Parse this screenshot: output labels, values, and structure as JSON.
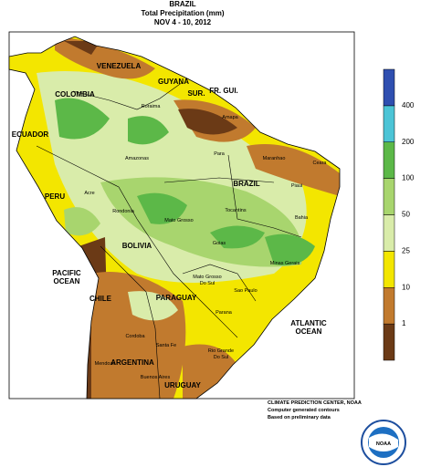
{
  "header": {
    "title": "BRAZIL",
    "subtitle": "Total Precipitation (mm)",
    "dates": "NOV 4 - 10, 2012"
  },
  "legend": {
    "ticks": [
      1,
      10,
      25,
      50,
      100,
      200,
      400
    ],
    "colors": [
      "#6b3a16",
      "#c17a2e",
      "#f3e600",
      "#d9ecaa",
      "#a8d56e",
      "#5cb848",
      "#4cc4d6",
      "#2f4fb0"
    ]
  },
  "countries": [
    "VENEZUELA",
    "GUYANA",
    "SUR.",
    "FR. GUI.",
    "COLOMBIA",
    "ECUADOR",
    "PERU",
    "BRAZIL",
    "BOLIVIA",
    "PARAGUAY",
    "CHILE",
    "ARGENTINA",
    "URUGUAY"
  ],
  "oceans": [
    "PACIFIC",
    "OCEAN",
    "ATLANTIC",
    "OCEAN"
  ],
  "states": [
    "Roraima",
    "Amapa",
    "Amazonas",
    "Para",
    "Maranhao",
    "Ceara",
    "Piaui",
    "Acre",
    "Rondonia",
    "Mato Grosso",
    "Tocantins",
    "Bahia",
    "Goias",
    "Minas Gerais",
    "Mato Grosso",
    "Do Sul",
    "Sao Paulo",
    "Parana",
    "Rio Grande",
    "Do Sul",
    "Santa Fe",
    "Cordoba",
    "Mendoza",
    "Buenos Aires"
  ],
  "credits": [
    "CLIMATE PREDICTION CENTER, NOAA",
    "Computer generated contours",
    "Based on preliminary data"
  ],
  "logo": "NOAA"
}
